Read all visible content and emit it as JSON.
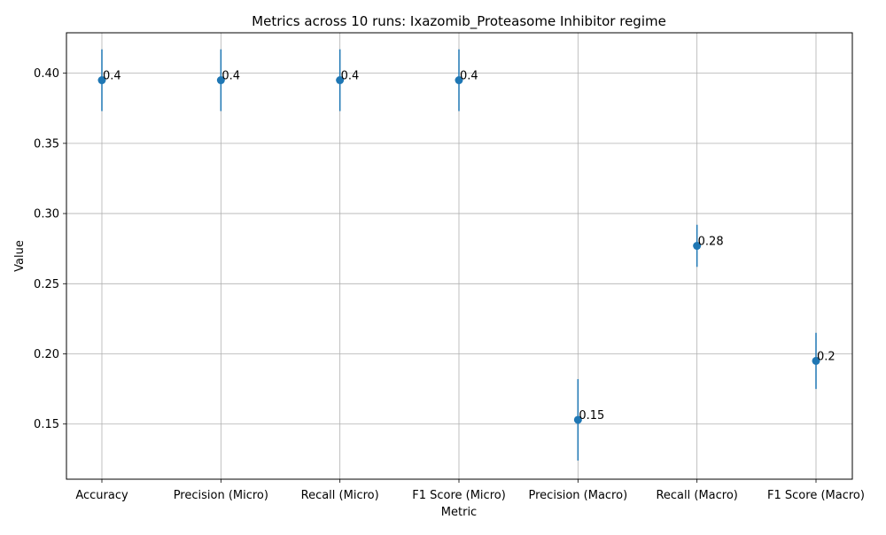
{
  "chart_data": {
    "type": "scatter",
    "title": "Metrics across 10 runs: Ixazomib_Proteasome Inhibitor regime",
    "xlabel": "Metric",
    "ylabel": "Value",
    "categories": [
      "Accuracy",
      "Precision (Micro)",
      "Recall (Micro)",
      "F1 Score (Micro)",
      "Precision (Macro)",
      "Recall (Macro)",
      "F1 Score (Macro)"
    ],
    "series": [
      {
        "values": [
          0.395,
          0.395,
          0.395,
          0.395,
          0.153,
          0.277,
          0.195
        ],
        "error": [
          0.022,
          0.022,
          0.022,
          0.022,
          0.029,
          0.015,
          0.02
        ],
        "labels": [
          "0.4",
          "0.4",
          "0.4",
          "0.4",
          "0.15",
          "0.28",
          "0.2"
        ],
        "color": "#1f77b4"
      }
    ],
    "yticks": [
      "0.15",
      "0.20",
      "0.25",
      "0.30",
      "0.35",
      "0.40"
    ],
    "ylim": [
      0.1107,
      0.4288
    ],
    "grid": true
  }
}
